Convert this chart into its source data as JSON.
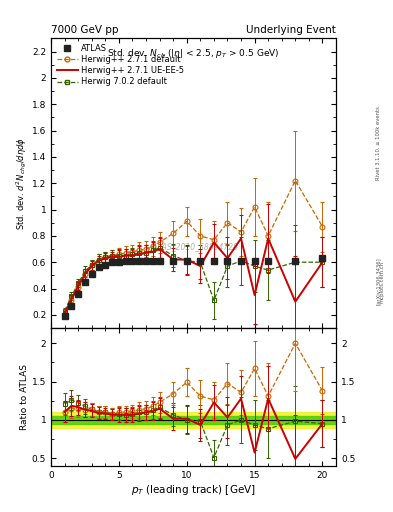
{
  "title_left": "7000 GeV pp",
  "title_right": "Underlying Event",
  "plot_title": "Std. dev. $N_{ch}$ ($|\\eta|$ < 2.5, $p_T$ > 0.5 GeV)",
  "xlabel": "$p_T$ (leading track) [GeV]",
  "ylabel_main": "Std. dev. $d^2 N_{chg}/d\\eta d\\phi$",
  "ylabel_ratio": "Ratio to ATLAS",
  "watermark": "ATLAS_2010_S8894728",
  "right_label1": "Rivet 3.1.10, ≥ 100k events",
  "right_label2": "mcplots.cern.ch [arXiv:1306.3436]",
  "atlas_x": [
    1.0,
    1.5,
    2.0,
    2.5,
    3.0,
    3.5,
    4.0,
    4.5,
    5.0,
    5.5,
    6.0,
    6.5,
    7.0,
    7.5,
    8.0,
    9.0,
    10.0,
    11.0,
    12.0,
    13.0,
    14.0,
    15.0,
    16.0,
    18.0,
    20.0
  ],
  "atlas_y": [
    0.19,
    0.27,
    0.36,
    0.45,
    0.51,
    0.56,
    0.58,
    0.6,
    0.6,
    0.61,
    0.61,
    0.61,
    0.61,
    0.61,
    0.61,
    0.61,
    0.61,
    0.61,
    0.61,
    0.61,
    0.61,
    0.61,
    0.61,
    0.61,
    0.63
  ],
  "atlas_ey": [
    0.015,
    0.015,
    0.015,
    0.015,
    0.015,
    0.015,
    0.015,
    0.015,
    0.015,
    0.015,
    0.015,
    0.015,
    0.015,
    0.015,
    0.015,
    0.015,
    0.015,
    0.015,
    0.015,
    0.015,
    0.015,
    0.015,
    0.015,
    0.015,
    0.02
  ],
  "hw271_x": [
    1.0,
    1.5,
    2.0,
    2.5,
    3.0,
    3.5,
    4.0,
    4.5,
    5.0,
    5.5,
    6.0,
    6.5,
    7.0,
    7.5,
    8.0,
    9.0,
    10.0,
    11.0,
    12.0,
    13.0,
    14.0,
    15.0,
    16.0,
    18.0,
    20.0
  ],
  "hw271_y": [
    0.21,
    0.31,
    0.41,
    0.51,
    0.58,
    0.62,
    0.64,
    0.65,
    0.66,
    0.67,
    0.68,
    0.69,
    0.7,
    0.72,
    0.75,
    0.82,
    0.91,
    0.8,
    0.77,
    0.9,
    0.83,
    1.02,
    0.8,
    1.22,
    0.87
  ],
  "hw271_ey": [
    0.02,
    0.03,
    0.03,
    0.04,
    0.04,
    0.04,
    0.04,
    0.04,
    0.05,
    0.05,
    0.05,
    0.06,
    0.06,
    0.07,
    0.08,
    0.09,
    0.11,
    0.13,
    0.14,
    0.16,
    0.18,
    0.22,
    0.26,
    0.38,
    0.19
  ],
  "hw271ue_x": [
    1.0,
    1.5,
    2.0,
    2.5,
    3.0,
    3.5,
    4.0,
    4.5,
    5.0,
    5.5,
    6.0,
    6.5,
    7.0,
    7.5,
    8.0,
    9.0,
    10.0,
    11.0,
    12.0,
    13.0,
    14.0,
    15.0,
    16.0,
    18.0,
    20.0
  ],
  "hw271ue_y": [
    0.21,
    0.32,
    0.42,
    0.51,
    0.57,
    0.61,
    0.63,
    0.64,
    0.64,
    0.65,
    0.65,
    0.66,
    0.67,
    0.68,
    0.7,
    0.62,
    0.62,
    0.57,
    0.75,
    0.63,
    0.78,
    0.35,
    0.78,
    0.3,
    0.6
  ],
  "hw271ue_ey": [
    0.02,
    0.03,
    0.03,
    0.04,
    0.04,
    0.04,
    0.04,
    0.04,
    0.05,
    0.05,
    0.05,
    0.06,
    0.06,
    0.07,
    0.08,
    0.09,
    0.11,
    0.13,
    0.14,
    0.16,
    0.18,
    0.22,
    0.26,
    0.35,
    0.19
  ],
  "hw702_x": [
    1.0,
    1.5,
    2.0,
    2.5,
    3.0,
    3.5,
    4.0,
    4.5,
    5.0,
    5.5,
    6.0,
    6.5,
    7.0,
    7.5,
    8.0,
    9.0,
    10.0,
    11.0,
    12.0,
    13.0,
    14.0,
    15.0,
    16.0,
    18.0,
    20.0
  ],
  "hw702_y": [
    0.23,
    0.34,
    0.44,
    0.53,
    0.58,
    0.62,
    0.64,
    0.65,
    0.65,
    0.65,
    0.66,
    0.67,
    0.67,
    0.69,
    0.71,
    0.65,
    0.61,
    0.6,
    0.31,
    0.57,
    0.61,
    0.57,
    0.54,
    0.6,
    0.6
  ],
  "hw702_ey": [
    0.02,
    0.03,
    0.03,
    0.04,
    0.04,
    0.04,
    0.04,
    0.04,
    0.05,
    0.05,
    0.05,
    0.06,
    0.06,
    0.07,
    0.08,
    0.09,
    0.11,
    0.13,
    0.14,
    0.16,
    0.18,
    0.2,
    0.23,
    0.28,
    0.19
  ],
  "atlas_color": "#222222",
  "hw271_color": "#cc6600",
  "hw271ue_color": "#cc0000",
  "hw702_color": "#336600",
  "band_green_inner": 0.05,
  "band_yellow_outer": 0.1,
  "main_ylim": [
    0.1,
    2.3
  ],
  "main_yticks": [
    0.2,
    0.4,
    0.6,
    0.8,
    1.0,
    1.2,
    1.4,
    1.6,
    1.8,
    2.0,
    2.2
  ],
  "ratio_ylim": [
    0.4,
    2.2
  ],
  "ratio_yticks": [
    0.5,
    1.0,
    1.5,
    2.0
  ],
  "xlim": [
    0.5,
    21.0
  ],
  "xticks": [
    0,
    5,
    10,
    15,
    20
  ]
}
